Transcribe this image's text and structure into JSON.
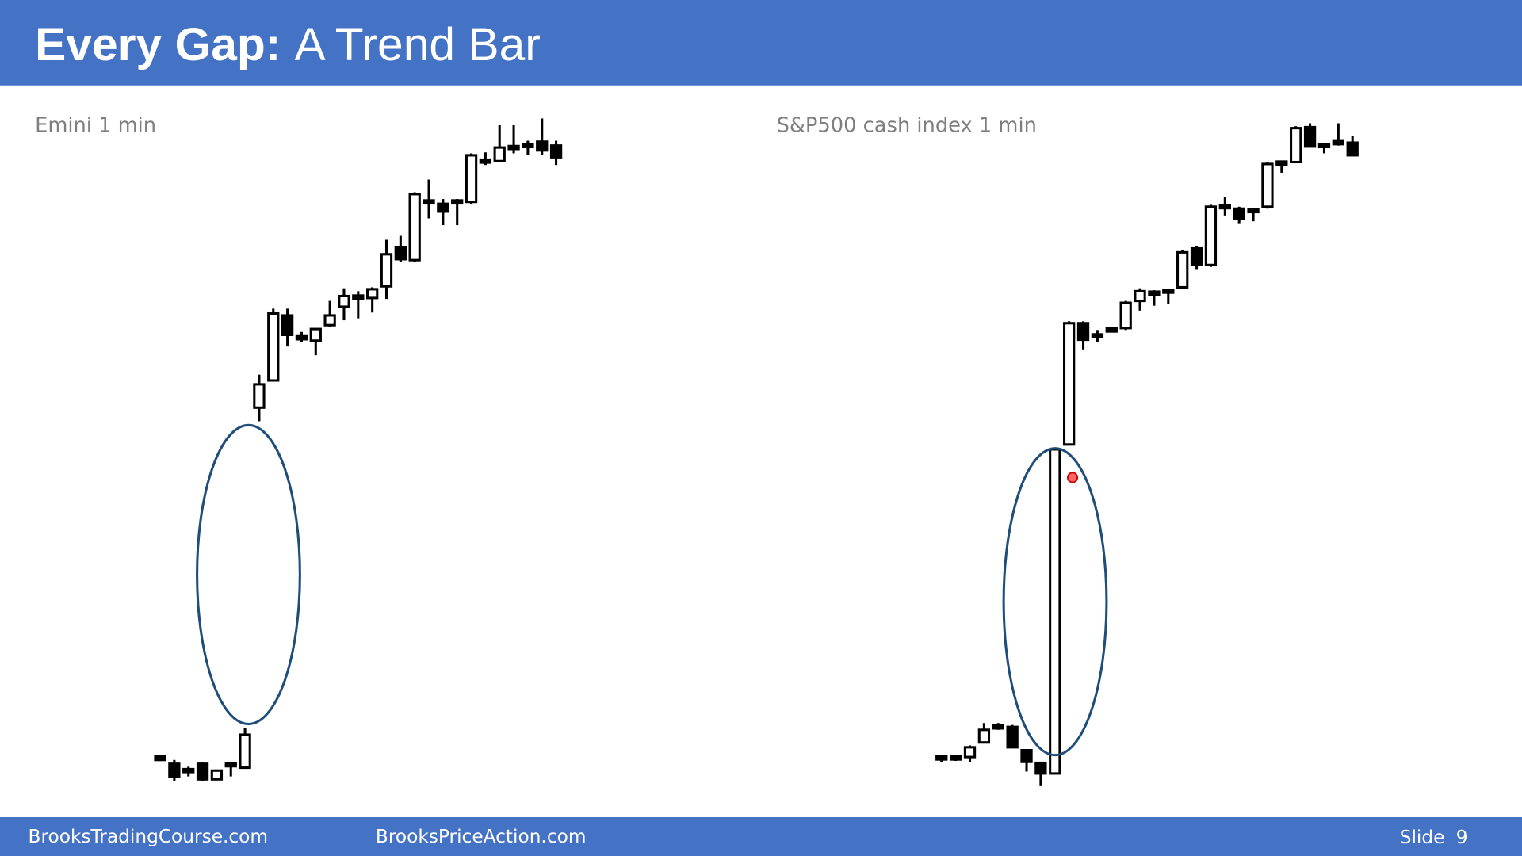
{
  "header": {
    "title_bold": "Every Gap:",
    "title_rest": "A Trend Bar"
  },
  "chart_data": [
    {
      "type": "candlestick",
      "title": "Emini 1 min",
      "ylim": [
        40,
        740
      ],
      "open": [
        71,
        63,
        56,
        63,
        47,
        62,
        59,
        430,
        458,
        525,
        502,
        499,
        515,
        534,
        544,
        543,
        555,
        595,
        582,
        642,
        640,
        642,
        642,
        684,
        684,
        698,
        700,
        704,
        700
      ],
      "high": [
        72,
        67,
        60,
        65,
        56,
        65,
        100,
        464,
        532,
        532,
        508,
        511,
        540,
        553,
        550,
        554,
        603,
        607,
        652,
        665,
        645,
        645,
        692,
        693,
        721,
        721,
        705,
        728,
        705
      ],
      "low": [
        67,
        45,
        50,
        45,
        47,
        50,
        59,
        416,
        458,
        493,
        498,
        484,
        513,
        520,
        522,
        528,
        542,
        580,
        580,
        625,
        618,
        618,
        640,
        680,
        684,
        692,
        690,
        690,
        680
      ],
      "close": [
        67,
        50,
        56,
        47,
        56,
        62,
        93,
        454,
        527,
        505,
        502,
        511,
        525,
        545,
        544,
        552,
        588,
        583,
        650,
        642,
        632,
        642,
        690,
        684,
        698,
        698,
        700,
        695,
        688
      ]
    },
    {
      "type": "candlestick",
      "title": "S&P500 cash index 1 min",
      "ylim": [
        40,
        740
      ],
      "open": [
        69,
        69,
        70,
        85,
        101,
        101,
        77,
        64,
        53,
        392,
        517,
        504,
        510,
        512,
        540,
        548,
        550,
        554,
        594,
        577,
        637,
        635,
        633,
        637,
        682,
        683,
        719,
        700,
        703,
        703
      ],
      "high": [
        72,
        72,
        82,
        105,
        105,
        103,
        77,
        64,
        389,
        519,
        519,
        510,
        512,
        540,
        553,
        551,
        552,
        592,
        596,
        639,
        647,
        637,
        636,
        683,
        684,
        720,
        723,
        702,
        723,
        710
      ],
      "low": [
        65,
        66,
        65,
        85,
        98,
        80,
        55,
        40,
        53,
        392,
        490,
        498,
        508,
        510,
        530,
        535,
        537,
        552,
        572,
        575,
        628,
        620,
        622,
        635,
        672,
        682,
        699,
        692,
        700,
        690
      ],
      "close": [
        69,
        69,
        80,
        98,
        101,
        80,
        65,
        53,
        387,
        517,
        500,
        504,
        510,
        538,
        550,
        548,
        550,
        590,
        577,
        637,
        637,
        625,
        633,
        681,
        682,
        718,
        699,
        700,
        703,
        690
      ]
    }
  ],
  "footer": {
    "left": "BrooksTradingCourse.com",
    "middle": "BrooksPriceAction.com",
    "slide_label": "Slide",
    "slide_number": 9
  }
}
